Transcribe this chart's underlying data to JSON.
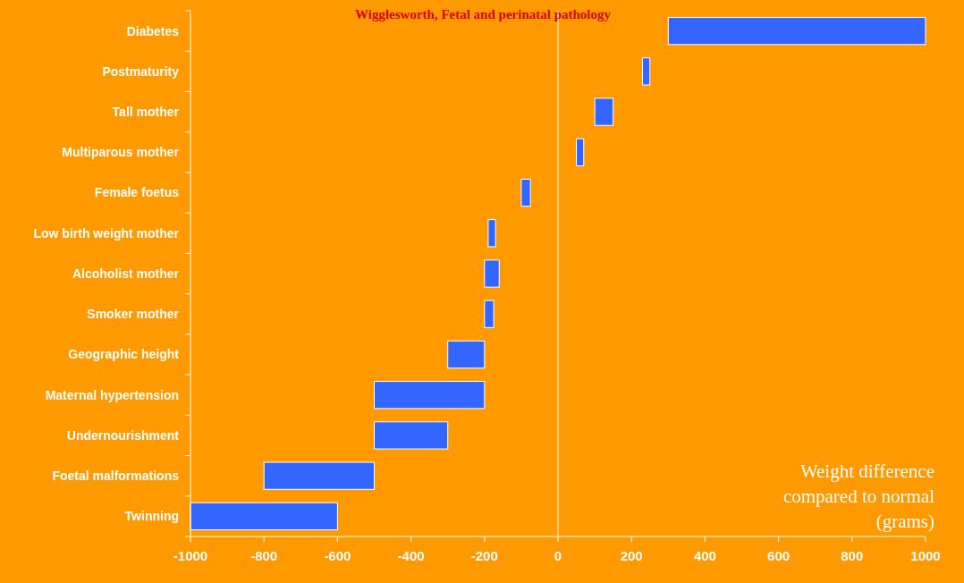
{
  "chart_data": {
    "type": "bar",
    "orientation": "horizontal",
    "subtitle": "Wigglesworth, Fetal and perinatal pathology",
    "xlabel": "Weight difference compared to normal (grams)",
    "categories": [
      "Diabetes",
      "Postmaturity",
      "Tall mother",
      "Multiparous mother",
      "Female foetus",
      "Low birth weight mother",
      "Alcoholist mother",
      "Smoker mother",
      "Geographic height",
      "Maternal hypertension",
      "Undernourishment",
      "Foetal malformations",
      "Twinning"
    ],
    "base": [
      300,
      230,
      100,
      50,
      -100,
      -190,
      -200,
      -200,
      -300,
      -500,
      -500,
      -800,
      -1000
    ],
    "values": [
      700,
      20,
      50,
      20,
      25,
      20,
      40,
      25,
      100,
      300,
      200,
      300,
      400
    ],
    "color": "#3366ff",
    "xlim": [
      -1000,
      1000
    ],
    "xticks": [
      -1000,
      -800,
      -600,
      -400,
      -200,
      0,
      200,
      400,
      600,
      800,
      1000
    ],
    "ref_lines": [
      {
        "axis": "x",
        "value": 0,
        "color": "#ffffff"
      }
    ],
    "grid": false
  }
}
